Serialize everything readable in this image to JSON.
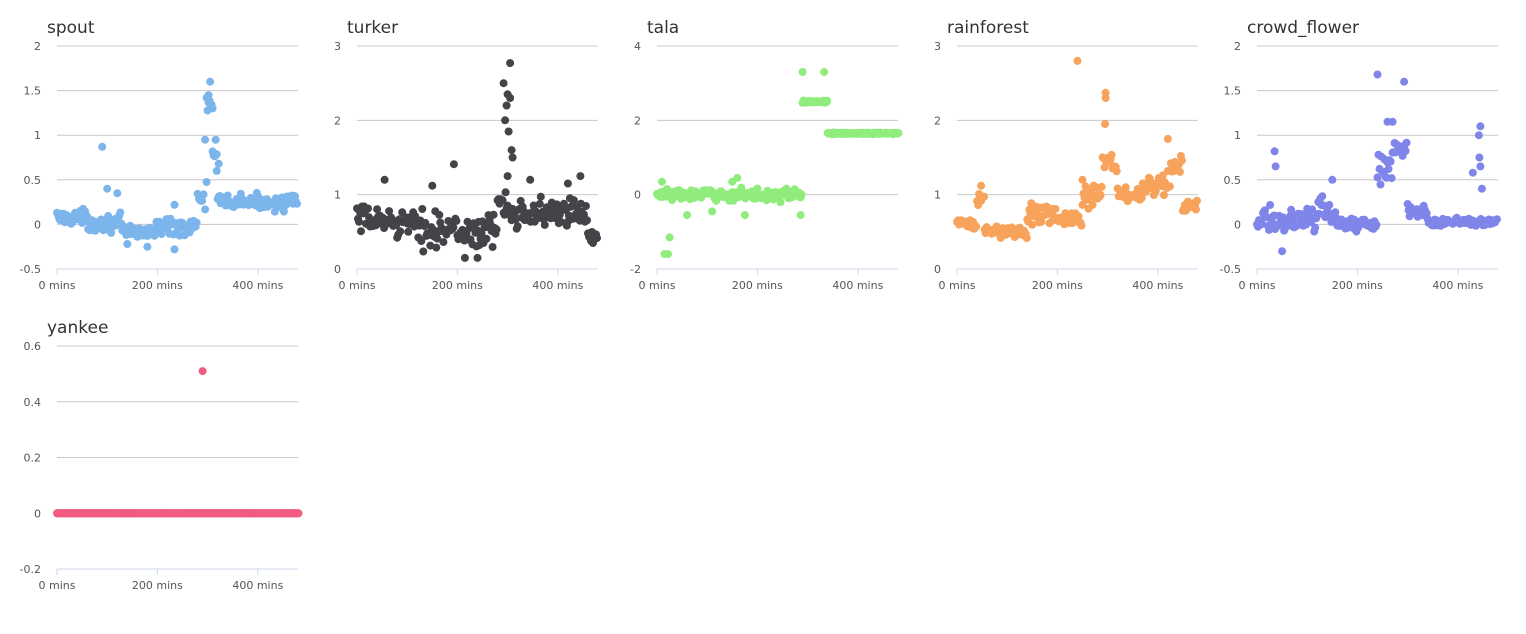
{
  "chart_data": [
    {
      "type": "scatter",
      "title": "spout",
      "color": "#7cb5ec",
      "ylim": [
        -0.5,
        2
      ],
      "yticks": [
        -0.5,
        0,
        0.5,
        1,
        1.5,
        2
      ],
      "ytick_labels": [
        "-0.5",
        "0",
        "0.5",
        "1",
        "1.5",
        "2"
      ],
      "xlim": [
        0,
        480
      ],
      "xticks": [
        0,
        200,
        400
      ],
      "xtick_labels": [
        "0 mins",
        "200 mins",
        "400 mins"
      ],
      "grid": true,
      "segments": [
        {
          "x0": 0,
          "x1": 60,
          "base": 0.08,
          "amp": 0.12,
          "step": 2
        },
        {
          "x0": 60,
          "x1": 130,
          "base": 0.02,
          "amp": 0.13,
          "step": 2
        },
        {
          "x0": 130,
          "x1": 200,
          "base": -0.08,
          "amp": 0.12,
          "step": 2
        },
        {
          "x0": 200,
          "x1": 280,
          "base": -0.02,
          "amp": 0.14,
          "step": 2
        },
        {
          "x0": 280,
          "x1": 300,
          "base": 0.3,
          "amp": 0.3,
          "step": 3
        },
        {
          "x0": 300,
          "x1": 310,
          "base": 1.35,
          "amp": 0.15,
          "step": 2
        },
        {
          "x0": 310,
          "x1": 320,
          "base": 0.8,
          "amp": 0.3,
          "step": 2
        },
        {
          "x0": 320,
          "x1": 480,
          "base": 0.25,
          "amp": 0.12,
          "step": 2
        }
      ],
      "points": [
        [
          90,
          0.87
        ],
        [
          120,
          0.35
        ],
        [
          100,
          0.4
        ],
        [
          140,
          -0.22
        ],
        [
          180,
          -0.25
        ],
        [
          234,
          -0.28
        ],
        [
          234,
          0.22
        ],
        [
          305,
          1.6
        ],
        [
          298,
          1.42
        ],
        [
          302,
          1.45
        ],
        [
          310,
          1.3
        ],
        [
          295,
          0.95
        ],
        [
          318,
          0.6
        ],
        [
          322,
          0.68
        ]
      ]
    },
    {
      "type": "scatter",
      "title": "turker",
      "color": "#434348",
      "ylim": [
        0,
        3
      ],
      "yticks": [
        0,
        1,
        2,
        3
      ],
      "ytick_labels": [
        "0",
        "1",
        "2",
        "3"
      ],
      "xlim": [
        0,
        480
      ],
      "xticks": [
        0,
        200,
        400
      ],
      "xtick_labels": [
        "0 mins",
        "200 mins",
        "400 mins"
      ],
      "grid": true,
      "segments": [
        {
          "x0": 0,
          "x1": 100,
          "base": 0.65,
          "amp": 0.28,
          "step": 2
        },
        {
          "x0": 100,
          "x1": 180,
          "base": 0.55,
          "amp": 0.35,
          "step": 2
        },
        {
          "x0": 180,
          "x1": 280,
          "base": 0.5,
          "amp": 0.3,
          "step": 2
        },
        {
          "x0": 280,
          "x1": 300,
          "base": 0.9,
          "amp": 0.35,
          "step": 2
        },
        {
          "x0": 300,
          "x1": 330,
          "base": 0.8,
          "amp": 0.3,
          "step": 2
        },
        {
          "x0": 330,
          "x1": 460,
          "base": 0.75,
          "amp": 0.28,
          "step": 2
        },
        {
          "x0": 460,
          "x1": 480,
          "base": 0.45,
          "amp": 0.15,
          "step": 2
        }
      ],
      "points": [
        [
          305,
          2.77
        ],
        [
          292,
          2.5
        ],
        [
          300,
          2.35
        ],
        [
          298,
          2.2
        ],
        [
          305,
          2.3
        ],
        [
          295,
          2.0
        ],
        [
          302,
          1.85
        ],
        [
          308,
          1.6
        ],
        [
          310,
          1.5
        ],
        [
          300,
          1.25
        ],
        [
          193,
          1.41
        ],
        [
          55,
          1.2
        ],
        [
          150,
          1.12
        ],
        [
          345,
          1.2
        ],
        [
          420,
          1.15
        ],
        [
          445,
          1.25
        ],
        [
          470,
          0.35
        ],
        [
          215,
          0.15
        ],
        [
          240,
          0.15
        ]
      ]
    },
    {
      "type": "scatter",
      "title": "tala",
      "color": "#90ed7d",
      "ylim": [
        -2,
        4
      ],
      "yticks": [
        -2,
        0,
        2,
        4
      ],
      "ytick_labels": [
        "-2",
        "0",
        "2",
        "4"
      ],
      "xlim": [
        0,
        480
      ],
      "xticks": [
        0,
        200,
        400
      ],
      "xtick_labels": [
        "0 mins",
        "200 mins",
        "400 mins"
      ],
      "grid": true,
      "segments": [
        {
          "x0": 0,
          "x1": 290,
          "base": 0.0,
          "amp": 0.22,
          "step": 2
        },
        {
          "x0": 290,
          "x1": 340,
          "base": 2.5,
          "amp": 0.04,
          "step": 1
        },
        {
          "x0": 340,
          "x1": 482,
          "base": 1.65,
          "amp": 0.03,
          "step": 1
        }
      ],
      "points": [
        [
          15,
          -1.6
        ],
        [
          22,
          -1.6
        ],
        [
          25,
          -1.15
        ],
        [
          10,
          0.35
        ],
        [
          60,
          -0.55
        ],
        [
          110,
          -0.45
        ],
        [
          160,
          0.45
        ],
        [
          175,
          -0.55
        ],
        [
          286,
          -0.55
        ],
        [
          290,
          3.3
        ],
        [
          333,
          3.3
        ],
        [
          20,
          0.15
        ],
        [
          150,
          0.35
        ]
      ]
    },
    {
      "type": "scatter",
      "title": "rainforest",
      "color": "#f7a35c",
      "ylim": [
        0,
        3
      ],
      "yticks": [
        0,
        1,
        2,
        3
      ],
      "ytick_labels": [
        "0",
        "1",
        "2",
        "3"
      ],
      "xlim": [
        0,
        480
      ],
      "xticks": [
        0,
        200,
        400
      ],
      "xtick_labels": [
        "0 mins",
        "200 mins",
        "400 mins"
      ],
      "grid": true,
      "segments": [
        {
          "x0": 0,
          "x1": 40,
          "base": 0.6,
          "amp": 0.12,
          "step": 2
        },
        {
          "x0": 40,
          "x1": 55,
          "base": 0.95,
          "amp": 0.15,
          "step": 2
        },
        {
          "x0": 55,
          "x1": 140,
          "base": 0.5,
          "amp": 0.12,
          "step": 2
        },
        {
          "x0": 140,
          "x1": 200,
          "base": 0.75,
          "amp": 0.2,
          "step": 2
        },
        {
          "x0": 200,
          "x1": 250,
          "base": 0.65,
          "amp": 0.15,
          "step": 2
        },
        {
          "x0": 250,
          "x1": 290,
          "base": 1.0,
          "amp": 0.25,
          "step": 2
        },
        {
          "x0": 290,
          "x1": 320,
          "base": 1.45,
          "amp": 0.2,
          "step": 2
        },
        {
          "x0": 320,
          "x1": 370,
          "base": 1.0,
          "amp": 0.15,
          "step": 2
        },
        {
          "x0": 370,
          "x1": 420,
          "base": 1.1,
          "amp": 0.2,
          "step": 2
        },
        {
          "x0": 420,
          "x1": 450,
          "base": 1.35,
          "amp": 0.25,
          "step": 2
        },
        {
          "x0": 450,
          "x1": 480,
          "base": 0.85,
          "amp": 0.12,
          "step": 2
        }
      ],
      "points": [
        [
          240,
          2.8
        ],
        [
          296,
          2.37
        ],
        [
          296,
          2.3
        ],
        [
          295,
          1.95
        ],
        [
          420,
          1.75
        ],
        [
          48,
          1.12
        ],
        [
          250,
          1.2
        ]
      ]
    },
    {
      "type": "scatter",
      "title": "crowd_flower",
      "color": "#8085e9",
      "ylim": [
        -0.5,
        2
      ],
      "yticks": [
        -0.5,
        0,
        0.5,
        1,
        1.5,
        2
      ],
      "ytick_labels": [
        "-0.5",
        "0",
        "0.5",
        "1",
        "1.5",
        "2"
      ],
      "xlim": [
        0,
        480
      ],
      "xticks": [
        0,
        200,
        400
      ],
      "xtick_labels": [
        "0 mins",
        "200 mins",
        "400 mins"
      ],
      "grid": true,
      "segments": [
        {
          "x0": 0,
          "x1": 120,
          "base": 0.05,
          "amp": 0.2,
          "step": 2
        },
        {
          "x0": 120,
          "x1": 160,
          "base": 0.15,
          "amp": 0.25,
          "step": 2
        },
        {
          "x0": 160,
          "x1": 240,
          "base": 0.0,
          "amp": 0.1,
          "step": 2
        },
        {
          "x0": 240,
          "x1": 270,
          "base": 0.65,
          "amp": 0.25,
          "step": 2
        },
        {
          "x0": 270,
          "x1": 300,
          "base": 0.85,
          "amp": 0.2,
          "step": 2
        },
        {
          "x0": 300,
          "x1": 340,
          "base": 0.15,
          "amp": 0.1,
          "step": 2
        },
        {
          "x0": 340,
          "x1": 480,
          "base": 0.03,
          "amp": 0.06,
          "step": 2
        }
      ],
      "points": [
        [
          240,
          1.68
        ],
        [
          293,
          1.6
        ],
        [
          35,
          0.82
        ],
        [
          37,
          0.65
        ],
        [
          50,
          -0.3
        ],
        [
          260,
          1.15
        ],
        [
          270,
          1.15
        ],
        [
          445,
          1.1
        ],
        [
          442,
          1.0
        ],
        [
          443,
          0.75
        ],
        [
          445,
          0.65
        ],
        [
          448,
          0.4
        ],
        [
          430,
          0.58
        ],
        [
          150,
          0.5
        ]
      ]
    },
    {
      "type": "scatter",
      "title": "yankee",
      "color": "#f15c80",
      "ylim": [
        -0.2,
        0.6
      ],
      "yticks": [
        -0.2,
        0,
        0.2,
        0.4,
        0.6
      ],
      "ytick_labels": [
        "-0.2",
        "0",
        "0.2",
        "0.4",
        "0.6"
      ],
      "xlim": [
        0,
        480
      ],
      "xticks": [
        0,
        200,
        400
      ],
      "xtick_labels": [
        "0 mins",
        "200 mins",
        "400 mins"
      ],
      "grid": true,
      "segments": [
        {
          "x0": 0,
          "x1": 482,
          "base": 0.0,
          "amp": 0.0,
          "step": 1
        }
      ],
      "points": [
        [
          290,
          0.51
        ]
      ]
    }
  ]
}
